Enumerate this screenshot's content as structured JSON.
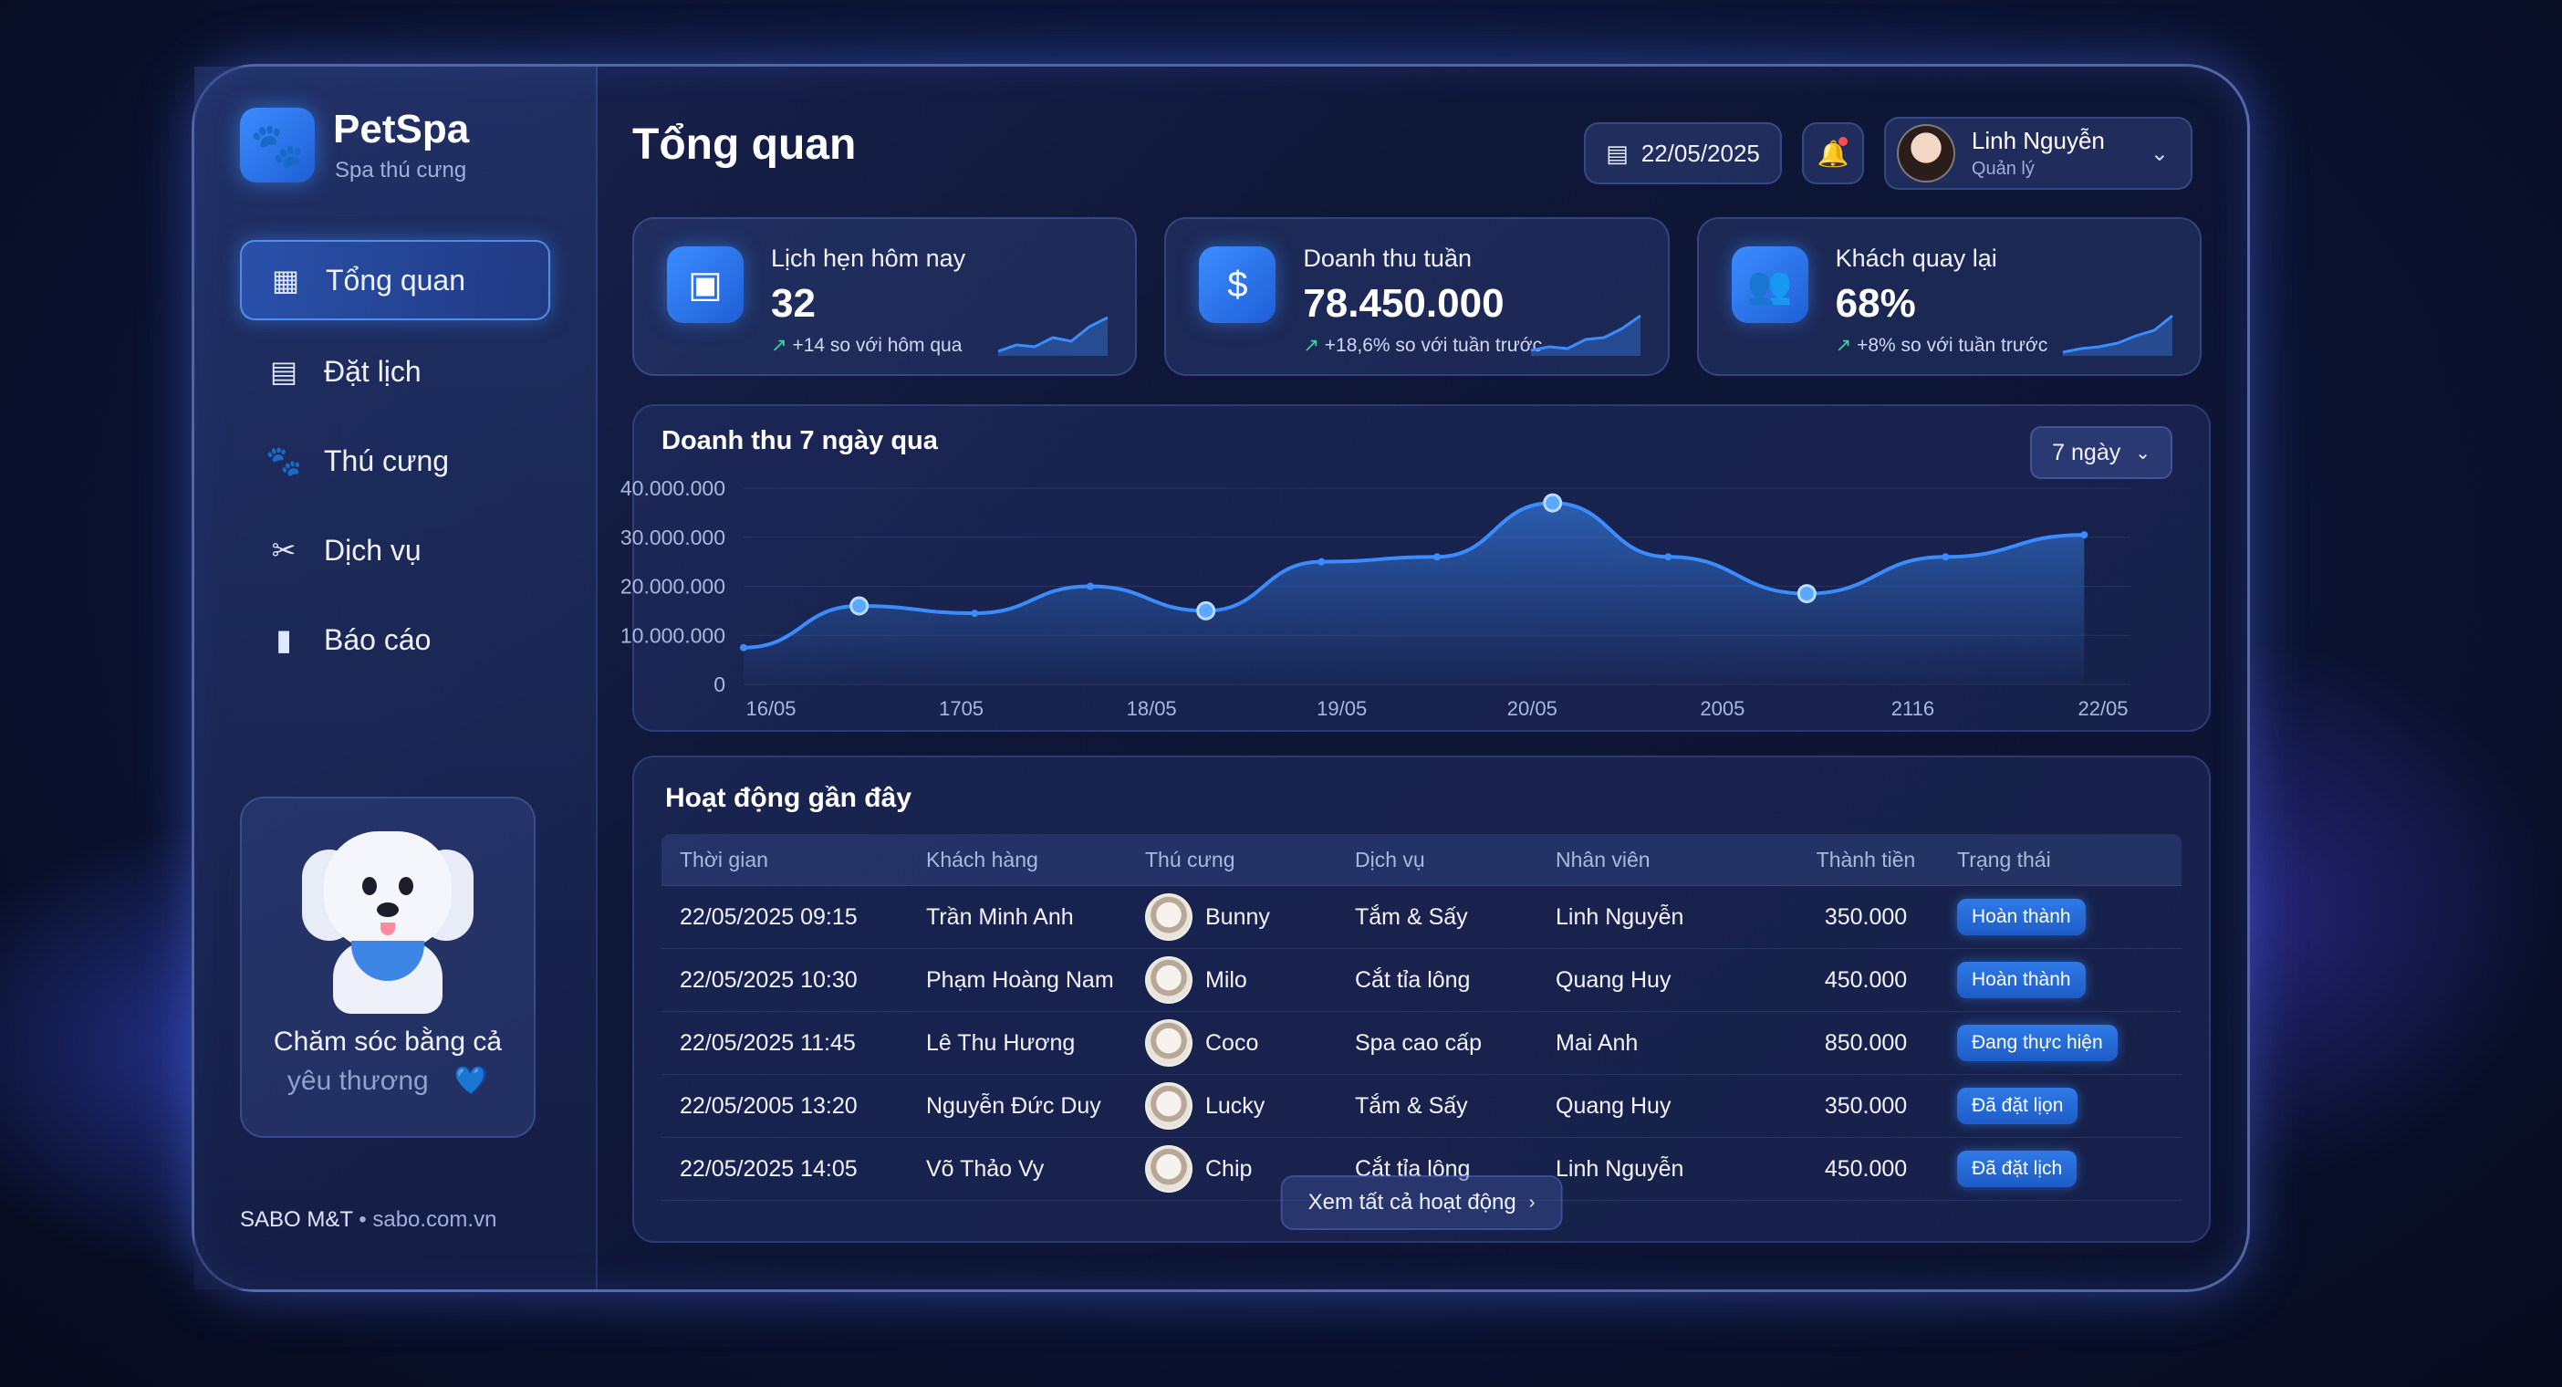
{
  "brand": {
    "name": "PetSpa",
    "subtitle": "Spa thú cưng",
    "logo_icon": "paw-icon"
  },
  "nav": [
    {
      "label": "Tổng quan",
      "icon": "grid-icon",
      "glyph": "▦",
      "active": true
    },
    {
      "label": "Đặt lịch",
      "icon": "calendar-icon",
      "glyph": "▤",
      "active": false
    },
    {
      "label": "Thú cưng",
      "icon": "paw-icon",
      "glyph": "🐾",
      "active": false
    },
    {
      "label": "Dịch vụ",
      "icon": "scissors-icon",
      "glyph": "✂",
      "active": false
    },
    {
      "label": "Báo cáo",
      "icon": "bar-chart-icon",
      "glyph": "▮",
      "active": false
    }
  ],
  "promo": {
    "line1": "Chăm sóc bằng cả",
    "line2": "yêu thương",
    "heart": "💙"
  },
  "footer": {
    "brand": "SABO M&T",
    "sep": " • ",
    "site": "sabo.com.vn"
  },
  "header": {
    "title": "Tổng quan",
    "date": "22/05/2025",
    "user": {
      "name": "Linh Nguyễn",
      "role": "Quản lý"
    }
  },
  "cards": [
    {
      "label": "Lịch hẹn hôm nay",
      "value": "32",
      "delta": "+14 so với hôm qua",
      "icon": "calendar-icon",
      "glyph": "▣"
    },
    {
      "label": "Doanh thu tuần",
      "value": "78.450.000",
      "delta": "+18,6% so với tuần trước",
      "icon": "money-bag-icon",
      "glyph": "$"
    },
    {
      "label": "Khách quay lại",
      "value": "68%",
      "delta": "+8% so với tuần trước",
      "icon": "users-icon",
      "glyph": "👥"
    }
  ],
  "chart_data": {
    "type": "area",
    "title": "Doanh thu 7 ngày qua",
    "range_label": "7 ngày",
    "y_ticks": [
      "40.000.000",
      "30.000.000",
      "20.000.000",
      "10.000.000",
      "0"
    ],
    "ylim": [
      0,
      40000000
    ],
    "x_tick_labels": [
      "16/05",
      "1705",
      "18/05",
      "19/05",
      "20/05",
      "2005",
      "2116",
      "22/05"
    ],
    "points": [
      {
        "x": 0.0,
        "y": 7500000
      },
      {
        "x": 0.5,
        "y": 16000000
      },
      {
        "x": 1.0,
        "y": 14500000
      },
      {
        "x": 1.5,
        "y": 20000000
      },
      {
        "x": 2.0,
        "y": 15000000
      },
      {
        "x": 2.5,
        "y": 25000000
      },
      {
        "x": 3.0,
        "y": 26000000
      },
      {
        "x": 3.5,
        "y": 37000000
      },
      {
        "x": 4.0,
        "y": 26000000
      },
      {
        "x": 4.6,
        "y": 18500000
      },
      {
        "x": 5.2,
        "y": 26000000
      },
      {
        "x": 5.8,
        "y": 30500000
      }
    ],
    "highlight_indices": [
      1,
      4,
      7,
      9
    ],
    "grid": true
  },
  "activity": {
    "title": "Hoạt động gần đây",
    "columns": [
      "Thời gian",
      "Khách hàng",
      "Thú cưng",
      "Dịch vụ",
      "Nhân viên",
      "Thành tiền",
      "Trạng thái"
    ],
    "rows": [
      {
        "time": "22/05/2025 09:15",
        "customer": "Trần Minh Anh",
        "pet": "Bunny",
        "service": "Tắm & Sấy",
        "staff": "Linh Nguyễn",
        "amount": "350.000",
        "status": "Hoàn thành"
      },
      {
        "time": "22/05/2025 10:30",
        "customer": "Phạm Hoàng Nam",
        "pet": "Milo",
        "service": "Cắt tỉa lông",
        "staff": "Quang Huy",
        "amount": "450.000",
        "status": "Hoàn thành"
      },
      {
        "time": "22/05/2025 11:45",
        "customer": "Lê Thu Hương",
        "pet": "Coco",
        "service": "Spa cao cấp",
        "staff": "Mai Anh",
        "amount": "850.000",
        "status": "Đang thực hiện"
      },
      {
        "time": "22/05/2005 13:20",
        "customer": "Nguyễn Đức Duy",
        "pet": "Lucky",
        "service": "Tắm & Sấy",
        "staff": "Quang Huy",
        "amount": "350.000",
        "status": "Đã đặt lịọn"
      },
      {
        "time": "22/05/2025 14:05",
        "customer": "Võ Thảo Vy",
        "pet": "Chip",
        "service": "Cắt tỉa lông",
        "staff": "Linh Nguyễn",
        "amount": "450.000",
        "status": "Đã đặt lịch"
      }
    ],
    "see_all": "Xem tất cả hoạt động"
  },
  "colors": {
    "accent": "#3b8dff",
    "positive": "#39d6a0",
    "background": "#0d1638"
  }
}
